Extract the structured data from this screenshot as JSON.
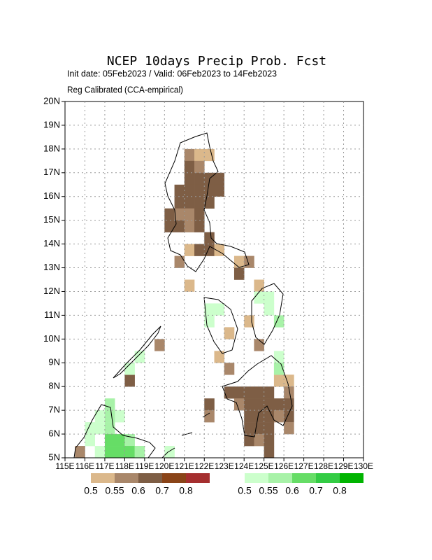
{
  "chart_data": {
    "type": "grid-map",
    "title": "NCEP 10days Precip Prob. Fcst",
    "subtitle": "Init date: 05Feb2023 / Valid: 06Feb2023 to 14Feb2023",
    "note": "Reg Calibrated (CCA-empirical)",
    "xlim": [
      115,
      130
    ],
    "ylim": [
      5,
      20
    ],
    "xticks": [
      {
        "value": 115,
        "label": "115E"
      },
      {
        "value": 116,
        "label": "116E"
      },
      {
        "value": 117,
        "label": "117E"
      },
      {
        "value": 118,
        "label": "118E"
      },
      {
        "value": 119,
        "label": "119E"
      },
      {
        "value": 120,
        "label": "120E"
      },
      {
        "value": 121,
        "label": "121E"
      },
      {
        "value": 122,
        "label": "122E"
      },
      {
        "value": 123,
        "label": "123E"
      },
      {
        "value": 124,
        "label": "124E"
      },
      {
        "value": 125,
        "label": "125E"
      },
      {
        "value": 126,
        "label": "126E"
      },
      {
        "value": 127,
        "label": "127E"
      },
      {
        "value": 128,
        "label": "128E"
      },
      {
        "value": 129,
        "label": "129E"
      },
      {
        "value": 130,
        "label": "130E"
      }
    ],
    "yticks": [
      {
        "value": 5,
        "label": "5N"
      },
      {
        "value": 6,
        "label": "6N"
      },
      {
        "value": 7,
        "label": "7N"
      },
      {
        "value": 8,
        "label": "8N"
      },
      {
        "value": 9,
        "label": "9N"
      },
      {
        "value": 10,
        "label": "10N"
      },
      {
        "value": 11,
        "label": "11N"
      },
      {
        "value": 12,
        "label": "12N"
      },
      {
        "value": 13,
        "label": "13N"
      },
      {
        "value": 14,
        "label": "14N"
      },
      {
        "value": 15,
        "label": "15N"
      },
      {
        "value": 16,
        "label": "16N"
      },
      {
        "value": 17,
        "label": "17N"
      },
      {
        "value": 18,
        "label": "18N"
      },
      {
        "value": 19,
        "label": "19N"
      },
      {
        "value": 20,
        "label": "20N"
      }
    ],
    "grid": true,
    "dry_levels": [
      0.5,
      0.55,
      0.6,
      0.7,
      0.8
    ],
    "dry_colors": [
      "#dbb88b",
      "#a9876a",
      "#7e5e45",
      "#8a4418",
      "#a52f2f"
    ],
    "wet_levels": [
      0.5,
      0.55,
      0.6,
      0.7,
      0.8
    ],
    "wet_colors": [
      "#ccffcc",
      "#a8f2a8",
      "#66dd66",
      "#33cc44",
      "#00b400"
    ],
    "dry_cells": [
      [
        121.0,
        17.5,
        0.55
      ],
      [
        121.5,
        17.5,
        0.5
      ],
      [
        122.0,
        17.5,
        0.5
      ],
      [
        121.0,
        17.0,
        0.6
      ],
      [
        121.5,
        17.0,
        0.55
      ],
      [
        121.0,
        16.5,
        0.6
      ],
      [
        121.5,
        16.5,
        0.6
      ],
      [
        122.0,
        16.5,
        0.6
      ],
      [
        122.5,
        16.5,
        0.6
      ],
      [
        120.5,
        16.0,
        0.6
      ],
      [
        121.0,
        16.0,
        0.6
      ],
      [
        121.5,
        16.0,
        0.6
      ],
      [
        122.0,
        16.0,
        0.6
      ],
      [
        122.5,
        16.0,
        0.6
      ],
      [
        120.5,
        15.5,
        0.6
      ],
      [
        121.0,
        15.5,
        0.6
      ],
      [
        121.5,
        15.5,
        0.6
      ],
      [
        122.0,
        15.5,
        0.6
      ],
      [
        120.0,
        15.0,
        0.6
      ],
      [
        120.5,
        15.0,
        0.55
      ],
      [
        121.0,
        15.0,
        0.55
      ],
      [
        121.5,
        15.0,
        0.6
      ],
      [
        120.0,
        14.5,
        0.6
      ],
      [
        120.5,
        14.5,
        0.6
      ],
      [
        121.0,
        14.5,
        0.55
      ],
      [
        121.5,
        14.5,
        0.6
      ],
      [
        122.0,
        14.0,
        0.6
      ],
      [
        121.0,
        13.5,
        0.5
      ],
      [
        121.5,
        13.5,
        0.6
      ],
      [
        122.0,
        13.5,
        0.6
      ],
      [
        122.5,
        13.5,
        0.5
      ],
      [
        120.5,
        13.0,
        0.55
      ],
      [
        123.5,
        13.0,
        0.5
      ],
      [
        124.0,
        13.0,
        0.55
      ],
      [
        123.5,
        12.5,
        0.6
      ],
      [
        121.0,
        12.0,
        0.5
      ],
      [
        124.5,
        12.0,
        0.5
      ],
      [
        124.0,
        10.5,
        0.5
      ],
      [
        123.0,
        10.0,
        0.5
      ],
      [
        124.5,
        9.5,
        0.55
      ],
      [
        119.5,
        9.5,
        0.55
      ],
      [
        122.5,
        9.0,
        0.5
      ],
      [
        123.0,
        8.5,
        0.55
      ],
      [
        118.0,
        8.0,
        0.6
      ],
      [
        125.5,
        8.0,
        0.5
      ],
      [
        126.0,
        8.0,
        0.5
      ],
      [
        123.0,
        7.5,
        0.6
      ],
      [
        123.5,
        7.5,
        0.6
      ],
      [
        124.0,
        7.5,
        0.6
      ],
      [
        124.5,
        7.5,
        0.6
      ],
      [
        125.0,
        7.5,
        0.6
      ],
      [
        126.0,
        7.5,
        0.55
      ],
      [
        122.0,
        7.0,
        0.6
      ],
      [
        123.5,
        7.0,
        0.55
      ],
      [
        124.0,
        7.0,
        0.6
      ],
      [
        124.5,
        7.0,
        0.6
      ],
      [
        125.0,
        7.0,
        0.6
      ],
      [
        125.5,
        7.0,
        0.6
      ],
      [
        126.0,
        7.0,
        0.6
      ],
      [
        122.0,
        6.5,
        0.55
      ],
      [
        124.0,
        6.5,
        0.6
      ],
      [
        124.5,
        6.5,
        0.6
      ],
      [
        125.0,
        6.5,
        0.6
      ],
      [
        125.5,
        6.5,
        0.55
      ],
      [
        126.0,
        6.5,
        0.6
      ],
      [
        124.0,
        6.0,
        0.6
      ],
      [
        124.5,
        6.0,
        0.6
      ],
      [
        125.0,
        6.0,
        0.6
      ],
      [
        126.0,
        6.0,
        0.55
      ],
      [
        124.0,
        5.5,
        0.6
      ],
      [
        124.5,
        5.5,
        0.55
      ],
      [
        125.0,
        5.5,
        0.6
      ],
      [
        125.0,
        5.0,
        0.6
      ],
      [
        115.5,
        5.0,
        0.55
      ]
    ],
    "wet_cells": [
      [
        122.0,
        11.0,
        0.5
      ],
      [
        122.5,
        11.0,
        0.5
      ],
      [
        122.0,
        10.5,
        0.5
      ],
      [
        124.5,
        11.5,
        0.5
      ],
      [
        125.0,
        11.5,
        0.5
      ],
      [
        125.0,
        11.0,
        0.5
      ],
      [
        125.5,
        10.5,
        0.55
      ],
      [
        125.5,
        9.0,
        0.5
      ],
      [
        125.5,
        8.5,
        0.55
      ],
      [
        118.5,
        9.0,
        0.5
      ],
      [
        118.0,
        8.5,
        0.5
      ],
      [
        117.0,
        7.0,
        0.55
      ],
      [
        117.5,
        6.5,
        0.5
      ],
      [
        116.5,
        6.5,
        0.5
      ],
      [
        117.0,
        6.5,
        0.55
      ],
      [
        116.0,
        6.0,
        0.5
      ],
      [
        116.5,
        6.0,
        0.5
      ],
      [
        117.0,
        6.0,
        0.55
      ],
      [
        116.0,
        5.5,
        0.5
      ],
      [
        117.0,
        5.5,
        0.6
      ],
      [
        117.5,
        5.5,
        0.6
      ],
      [
        118.0,
        5.5,
        0.55
      ],
      [
        116.5,
        5.0,
        0.5
      ],
      [
        117.0,
        5.0,
        0.6
      ],
      [
        117.5,
        5.0,
        0.6
      ],
      [
        118.0,
        5.0,
        0.6
      ],
      [
        118.5,
        5.0,
        0.55
      ],
      [
        120.0,
        5.0,
        0.5
      ]
    ]
  }
}
